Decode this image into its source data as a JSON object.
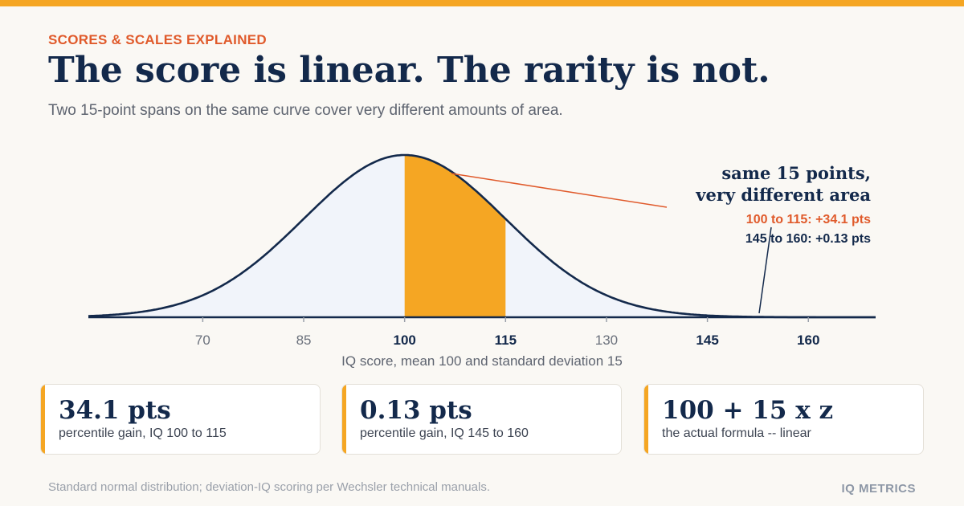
{
  "header": {
    "eyebrow": "SCORES & SCALES EXPLAINED",
    "title": "The score is linear. The rarity is not.",
    "subtitle": "Two 15-point spans on the same curve cover very different amounts of area."
  },
  "chart_data": {
    "type": "area",
    "distribution": "normal",
    "mean": 100,
    "sd": 15,
    "xlim": [
      53,
      170
    ],
    "x_ticks": [
      70,
      85,
      100,
      115,
      130,
      145,
      160
    ],
    "bold_ticks": [
      100,
      115,
      145,
      160
    ],
    "xlabel": "IQ score, mean 100 and standard deviation 15",
    "grid": false,
    "highlight": {
      "from": 100,
      "to": 115
    },
    "callout": {
      "title_line1": "same 15 points,",
      "title_line2": "very different area",
      "line1": "100 to 115: +34.1 pts",
      "line2": "145 to 160: +0.13 pts"
    },
    "colors": {
      "curve": "#13294b",
      "fill": "#f1f4fa",
      "highlight": "#f5a623",
      "accent": "#e05a2b"
    }
  },
  "cards": [
    {
      "value": "34.1 pts",
      "label": "percentile gain, IQ 100 to 115"
    },
    {
      "value": "0.13 pts",
      "label": "percentile gain, IQ 145 to 160"
    },
    {
      "value": "100 + 15 x z",
      "label": "the actual formula -- linear"
    }
  ],
  "footer": {
    "note": "Standard normal distribution; deviation-IQ scoring per Wechsler technical manuals.",
    "brand": "IQ METRICS"
  }
}
